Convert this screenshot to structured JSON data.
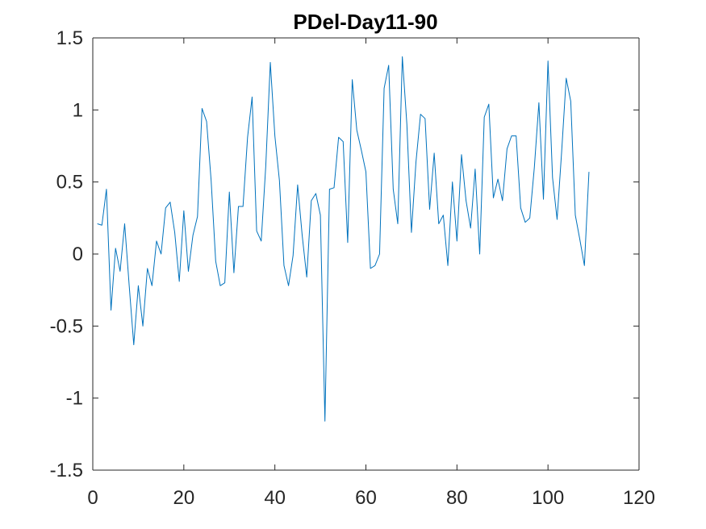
{
  "chart_data": {
    "type": "line",
    "title": "PDel-Day11-90",
    "xlabel": "",
    "ylabel": "",
    "xlim": [
      0,
      120
    ],
    "ylim": [
      -1.5,
      1.5
    ],
    "xticks": [
      0,
      20,
      40,
      60,
      80,
      100,
      120
    ],
    "yticks": [
      -1.5,
      -1,
      -0.5,
      0,
      0.5,
      1,
      1.5
    ],
    "xtick_labels": [
      "0",
      "20",
      "40",
      "60",
      "80",
      "100",
      "120"
    ],
    "ytick_labels": [
      "-1.5",
      "-1",
      "-0.5",
      "0",
      "0.5",
      "1",
      "1.5"
    ],
    "grid": false,
    "line_color": "#0072BD",
    "series": [
      {
        "x": [
          1,
          2,
          3,
          4,
          5,
          6,
          7,
          8,
          9,
          10,
          11,
          12,
          13,
          14,
          15,
          16,
          17,
          18,
          19,
          20,
          21,
          22,
          23,
          24,
          25,
          26,
          27,
          28,
          29,
          30,
          31,
          32,
          33,
          34,
          35,
          36,
          37,
          38,
          39,
          40,
          41,
          42,
          43,
          44,
          45,
          46,
          47,
          48,
          49,
          50,
          51,
          52,
          53,
          54,
          55,
          56,
          57,
          58,
          59,
          60,
          61,
          62,
          63,
          64,
          65,
          66,
          67,
          68,
          69,
          70,
          71,
          72,
          73,
          74,
          75,
          76,
          77,
          78,
          79,
          80,
          81,
          82,
          83,
          84,
          85,
          86,
          87,
          88,
          89,
          90,
          91,
          92,
          93,
          94,
          95,
          96,
          97,
          98,
          99,
          100,
          101,
          102,
          103,
          104,
          105,
          106,
          107,
          108,
          109
        ],
        "values": [
          0.21,
          0.2,
          0.45,
          -0.39,
          0.04,
          -0.12,
          0.21,
          -0.22,
          -0.63,
          -0.22,
          -0.5,
          -0.1,
          -0.22,
          0.09,
          0.0,
          0.32,
          0.36,
          0.15,
          -0.19,
          0.3,
          -0.12,
          0.13,
          0.26,
          1.01,
          0.92,
          0.51,
          -0.05,
          -0.22,
          -0.2,
          0.43,
          -0.13,
          0.33,
          0.33,
          0.81,
          1.09,
          0.16,
          0.09,
          0.61,
          1.33,
          0.82,
          0.51,
          -0.08,
          -0.22,
          -0.01,
          0.48,
          0.13,
          -0.16,
          0.37,
          0.42,
          0.27,
          -1.16,
          0.45,
          0.46,
          0.81,
          0.78,
          0.08,
          1.21,
          0.86,
          0.72,
          0.57,
          -0.1,
          -0.08,
          0.0,
          1.15,
          1.31,
          0.45,
          0.21,
          1.37,
          0.9,
          0.15,
          0.64,
          0.97,
          0.94,
          0.31,
          0.7,
          0.21,
          0.27,
          -0.08,
          0.5,
          0.09,
          0.69,
          0.37,
          0.18,
          0.59,
          0.0,
          0.95,
          1.04,
          0.39,
          0.52,
          0.37,
          0.73,
          0.82,
          0.82,
          0.32,
          0.22,
          0.25,
          0.6,
          1.05,
          0.38,
          1.34,
          0.53,
          0.24,
          0.71,
          1.22,
          1.06,
          0.27,
          0.1,
          -0.08,
          0.57
        ]
      }
    ]
  }
}
